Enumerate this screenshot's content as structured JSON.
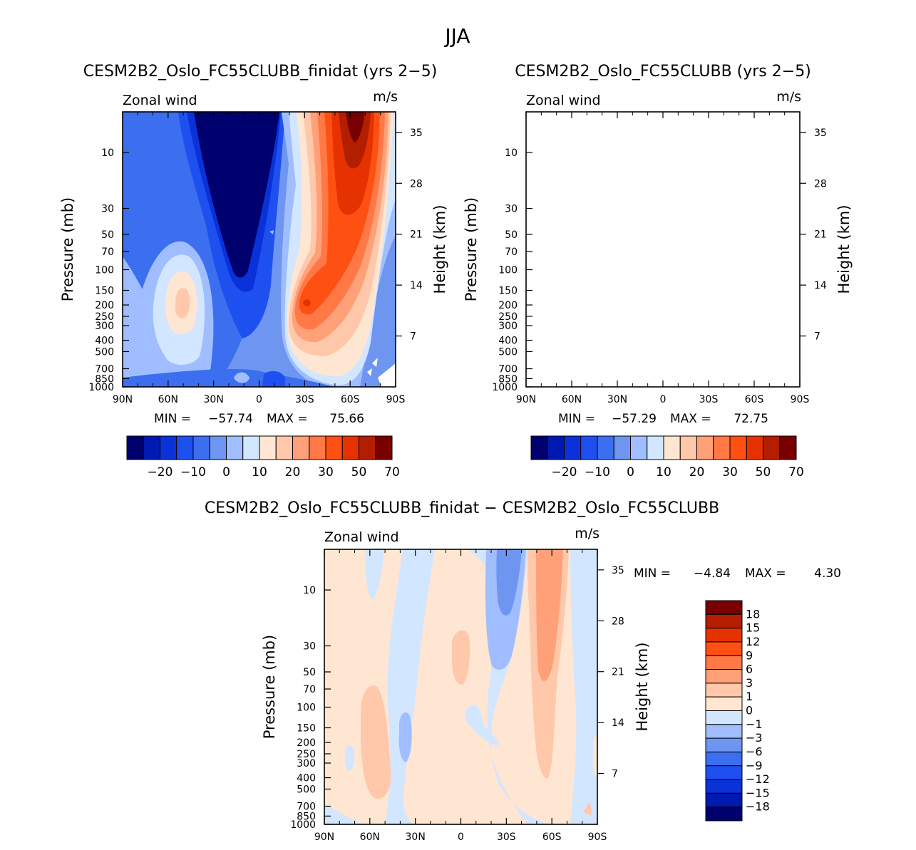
{
  "figure_title": "JJA",
  "chart_data": [
    {
      "type": "contour",
      "id": "panel1",
      "title": "CESM2B2_Oslo_FC55CLUBB_finidat (yrs 2−5)",
      "variable": "Zonal wind",
      "units": "m/s",
      "xlabel": "",
      "ylabel": "Pressure (mb)",
      "y2label": "Height (km)",
      "x_ticks": [
        "90N",
        "60N",
        "30N",
        "0",
        "30S",
        "60S",
        "90S"
      ],
      "p_ticks": [
        "10",
        "30",
        "50",
        "70",
        "100",
        "150",
        "200",
        "250",
        "300",
        "400",
        "500",
        "700",
        "850",
        "1000"
      ],
      "z_ticks": [
        "35",
        "28",
        "21",
        "14",
        "7"
      ],
      "stats": {
        "min_label": "MIN =",
        "min": "−57.74",
        "max_label": "MAX =",
        "max": "75.66"
      },
      "colorbar_labels": [
        "−20",
        "−10",
        "0",
        "10",
        "20",
        "30",
        "50",
        "70"
      ]
    },
    {
      "type": "contour",
      "id": "panel2",
      "title": "CESM2B2_Oslo_FC55CLUBB (yrs 2−5)",
      "variable": "Zonal wind",
      "units": "m/s",
      "ylabel": "Pressure (mb)",
      "y2label": "Height (km)",
      "x_ticks": [
        "90N",
        "60N",
        "30N",
        "0",
        "30S",
        "60S",
        "90S"
      ],
      "p_ticks": [
        "10",
        "30",
        "50",
        "70",
        "100",
        "150",
        "200",
        "250",
        "300",
        "400",
        "500",
        "700",
        "850",
        "1000"
      ],
      "z_ticks": [
        "35",
        "28",
        "21",
        "14",
        "7"
      ],
      "stats": {
        "min_label": "MIN =",
        "min": "−57.29",
        "max_label": "MAX =",
        "max": "72.75"
      },
      "colorbar_labels": [
        "−20",
        "−10",
        "0",
        "10",
        "20",
        "30",
        "50",
        "70"
      ]
    },
    {
      "type": "contour",
      "id": "diff",
      "title": "CESM2B2_Oslo_FC55CLUBB_finidat − CESM2B2_Oslo_FC55CLUBB",
      "variable": "Zonal wind",
      "units": "m/s",
      "ylabel": "Pressure (mb)",
      "y2label": "Height (km)",
      "x_ticks": [
        "90N",
        "60N",
        "30N",
        "0",
        "30S",
        "60S",
        "90S"
      ],
      "p_ticks": [
        "10",
        "30",
        "50",
        "70",
        "100",
        "150",
        "200",
        "250",
        "300",
        "400",
        "500",
        "700",
        "850",
        "1000"
      ],
      "z_ticks": [
        "35",
        "28",
        "21",
        "14",
        "7"
      ],
      "stats": {
        "min_label": "MIN =",
        "min": "−4.84",
        "max_label": "MAX =",
        "max": "4.30"
      },
      "colorbar_labels": [
        "18",
        "15",
        "12",
        "9",
        "6",
        "3",
        "1",
        "0",
        "−1",
        "−3",
        "−6",
        "−9",
        "−12",
        "−15",
        "−18"
      ]
    }
  ],
  "colors": {
    "main_scale": [
      "#00006e",
      "#0019b0",
      "#0a32d8",
      "#1e50f0",
      "#3c6ef0",
      "#6e96f0",
      "#a0beff",
      "#d2e6ff",
      "#ffe6d2",
      "#ffc8aa",
      "#ffa078",
      "#ff7846",
      "#ff5014",
      "#e63200",
      "#b41e00",
      "#780000"
    ],
    "diff_scale_top_to_bottom": [
      "#780000",
      "#b41e00",
      "#e63200",
      "#ff5014",
      "#ff7846",
      "#ffa078",
      "#ffc8aa",
      "#ffe6d2",
      "#d2e6ff",
      "#a0beff",
      "#6e96f0",
      "#3c6ef0",
      "#1e50f0",
      "#0a32d8",
      "#0019b0",
      "#00006e"
    ]
  }
}
